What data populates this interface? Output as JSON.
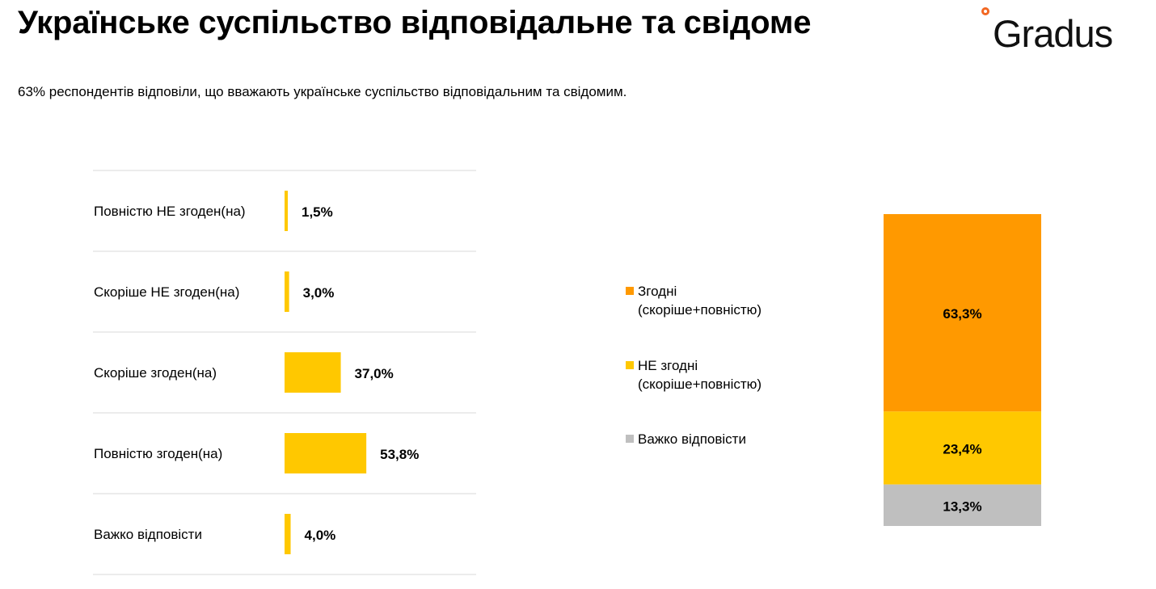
{
  "header": {
    "title": "Українське суспільство відповідальне та свідоме",
    "subtitle": "63% респондентів відповіли, що вважають українське суспільство відповідальним та свідомим."
  },
  "logo": {
    "text": "Gradus",
    "ring_color": "#f26722"
  },
  "colors": {
    "bar": "#ffc800",
    "agree": "#ff9900",
    "disagree": "#ffc800",
    "hard": "#bfbfbf",
    "divider": "#d9d9d9"
  },
  "chart_data": [
    {
      "type": "bar",
      "orientation": "horizontal",
      "categories": [
        "Повністю НЕ згоден(на)",
        "Скоріше НЕ згоден(на)",
        "Скоріше згоден(на)",
        "Повністю згоден(на)",
        "Важко відповісти"
      ],
      "values": [
        1.5,
        3.0,
        37.0,
        53.8,
        4.0
      ],
      "value_labels": [
        "1,5%",
        "3,0%",
        "37,0%",
        "53,8%",
        "4,0%"
      ],
      "unit": "%",
      "xlim": [
        0,
        100
      ]
    },
    {
      "type": "bar",
      "orientation": "stacked-vertical",
      "series": [
        {
          "name": "Згодні (скоріше+повністю)",
          "value": 63.3,
          "label": "63,3%"
        },
        {
          "name": "НЕ згодні (скоріше+повністю)",
          "value": 23.4,
          "label": "23,4%"
        },
        {
          "name": "Важко відповісти",
          "value": 13.3,
          "label": "13,3%"
        }
      ],
      "legend": [
        "Згодні (скоріше+повністю)",
        "НЕ згодні (скоріше+повністю)",
        "Важко відповісти"
      ],
      "legend_position": "left",
      "unit": "%"
    }
  ]
}
